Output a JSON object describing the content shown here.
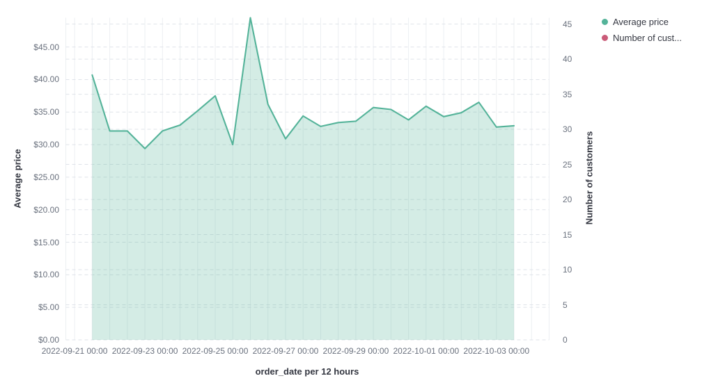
{
  "chart_data": {
    "type": "area",
    "title": "",
    "xlabel": "order_date per 12 hours",
    "ylabel_left": "Average price",
    "ylabel_right": "Number of customers",
    "x_tick_labels": [
      "2022-09-21 00:00",
      "2022-09-23 00:00",
      "2022-09-25 00:00",
      "2022-09-27 00:00",
      "2022-09-29 00:00",
      "2022-10-01 00:00",
      "2022-10-03 00:00"
    ],
    "y_left_tick_labels": [
      "$0.00",
      "$5.00",
      "$10.00",
      "$15.00",
      "$20.00",
      "$25.00",
      "$30.00",
      "$35.00",
      "$40.00",
      "$45.00"
    ],
    "y_right_tick_labels": [
      "0",
      "5",
      "10",
      "15",
      "20",
      "25",
      "30",
      "35",
      "40",
      "45"
    ],
    "x_range": [
      "2022-09-20 18:00",
      "2022-10-04 12:00"
    ],
    "x_grid_interval_hours": 12,
    "ylim_left": [
      0,
      49.5
    ],
    "ylim_right": [
      0,
      45.9
    ],
    "grid": true,
    "legend_position": "top-right",
    "legend": [
      {
        "label": "Average price",
        "color": "#54B399"
      },
      {
        "label": "Number of cust...",
        "color": "#CA5B78"
      }
    ],
    "colors": {
      "line": "#54B399",
      "fill": "#54B399",
      "fill_opacity": 0.25,
      "grid_horizontal": "#DFE3E9",
      "grid_vertical": "#ECEFF2",
      "tick_text": "#69707D",
      "title_text": "#343741"
    },
    "series": [
      {
        "name": "Average price",
        "type": "area",
        "color": "#54B399",
        "x": [
          "2022-09-21 12:00",
          "2022-09-22 00:00",
          "2022-09-22 12:00",
          "2022-09-23 00:00",
          "2022-09-23 12:00",
          "2022-09-24 00:00",
          "2022-09-24 12:00",
          "2022-09-25 00:00",
          "2022-09-25 12:00",
          "2022-09-26 00:00",
          "2022-09-26 12:00",
          "2022-09-27 00:00",
          "2022-09-27 12:00",
          "2022-09-28 00:00",
          "2022-09-28 12:00",
          "2022-09-29 00:00",
          "2022-09-29 12:00",
          "2022-09-30 00:00",
          "2022-09-30 12:00",
          "2022-10-01 00:00",
          "2022-10-01 12:00",
          "2022-10-02 00:00",
          "2022-10-02 12:00",
          "2022-10-03 00:00",
          "2022-10-03 12:00"
        ],
        "values": [
          40.7,
          32.1,
          32.1,
          29.4,
          32.1,
          33.0,
          35.2,
          37.5,
          30.0,
          49.5,
          36.2,
          30.9,
          34.4,
          32.8,
          33.4,
          33.6,
          35.7,
          35.4,
          33.8,
          35.9,
          34.3,
          34.9,
          36.5,
          32.7,
          32.9
        ]
      },
      {
        "name": "Number of customers",
        "type": "line",
        "color": "#CA5B78",
        "x": [],
        "values": []
      }
    ]
  }
}
